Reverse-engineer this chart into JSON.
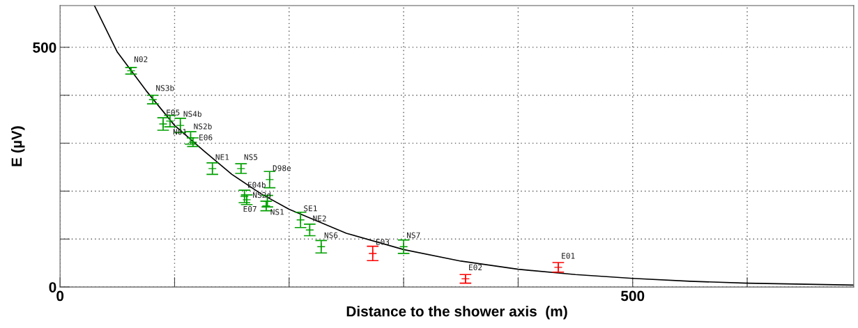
{
  "chart_data": {
    "type": "scatter",
    "xlabel": "Distance to the shower axis  (m)",
    "ylabel": "E (µV)",
    "xlim": [
      0,
      693
    ],
    "ylim": [
      0,
      587
    ],
    "xticks": [
      0,
      {
        "value": 100,
        "label": null
      },
      {
        "value": 200,
        "label": null
      },
      {
        "value": 300,
        "label": null
      },
      {
        "value": 400,
        "label": null
      },
      500,
      {
        "value": 600,
        "label": null
      }
    ],
    "yticks": [
      0,
      {
        "value": 100,
        "label": null
      },
      {
        "value": 200,
        "label": null
      },
      {
        "value": 300,
        "label": null
      },
      {
        "value": 400,
        "label": null
      },
      500
    ],
    "grid": true,
    "legend": false,
    "series": [
      {
        "type": "scatter",
        "marker": "cross",
        "color": "#00a000",
        "x": [
          62,
          81,
          90,
          96,
          105,
          114,
          116,
          133,
          158,
          183,
          161,
          163,
          181,
          180,
          210,
          218,
          228,
          300
        ],
        "values": [
          451,
          391,
          340,
          346,
          337,
          311,
          302,
          247,
          247,
          224,
          189,
          182,
          179,
          169,
          140,
          119,
          84,
          84
        ],
        "errors": [
          7,
          9,
          13,
          12,
          15,
          13,
          9,
          12,
          10,
          17,
          13,
          10,
          12,
          10,
          16,
          12,
          13,
          14
        ]
      },
      {
        "type": "scatter",
        "marker": "cross",
        "color": "#ff0000",
        "x": [
          273,
          354,
          435
        ],
        "values": [
          70,
          17,
          41
        ],
        "errors": [
          15,
          9,
          10
        ]
      },
      {
        "type": "line",
        "marker": "none",
        "color": "#000000",
        "line_style": "solid",
        "x": [
          30,
          50,
          75,
          100,
          125,
          150,
          175,
          200,
          250,
          300,
          350,
          400,
          450,
          500,
          550,
          600,
          693
        ],
        "values": [
          587,
          490,
          410,
          337,
          285,
          235,
          195,
          162,
          112,
          78,
          54,
          37,
          26,
          18,
          12,
          8,
          4
        ]
      }
    ],
    "annotations": [
      {
        "text": "N02",
        "x": 62,
        "y": 451
      },
      {
        "text": "NS3b",
        "x": 81,
        "y": 391
      },
      {
        "text": "E05",
        "x": 90,
        "y": 340
      },
      {
        "text": "N01",
        "x": 96,
        "y": 346
      },
      {
        "text": "NS4b",
        "x": 105,
        "y": 337
      },
      {
        "text": "NS2b",
        "x": 114,
        "y": 311
      },
      {
        "text": "E06",
        "x": 116,
        "y": 302
      },
      {
        "text": "NE1",
        "x": 133,
        "y": 247
      },
      {
        "text": "NS5",
        "x": 158,
        "y": 247
      },
      {
        "text": "D98e",
        "x": 183,
        "y": 224
      },
      {
        "text": "E04b",
        "x": 161,
        "y": 189
      },
      {
        "text": "NS2d",
        "x": 163,
        "y": 182
      },
      {
        "text": "NS1",
        "x": 181,
        "y": 179
      },
      {
        "text": "E07",
        "x": 180,
        "y": 169
      },
      {
        "text": "SE1",
        "x": 210,
        "y": 140
      },
      {
        "text": "NE2",
        "x": 218,
        "y": 119
      },
      {
        "text": "NS6",
        "x": 228,
        "y": 84
      },
      {
        "text": "NS7",
        "x": 300,
        "y": 84
      },
      {
        "text": "E03",
        "x": 273,
        "y": 70
      },
      {
        "text": "E02",
        "x": 354,
        "y": 17
      },
      {
        "text": "E01",
        "x": 435,
        "y": 41
      }
    ]
  }
}
